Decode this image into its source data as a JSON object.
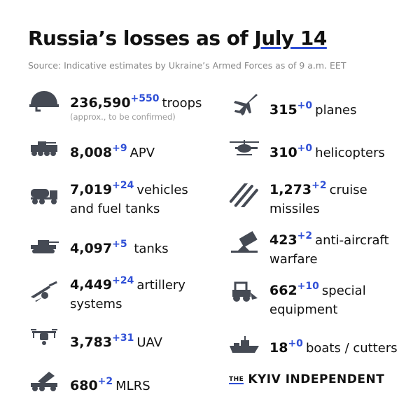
{
  "title": {
    "prefix": "Russia’s losses as of ",
    "date": "July 14"
  },
  "source": "Source: Indicative estimates by Ukraine’s Armed Forces as of 9 a.m. EET",
  "left": [
    {
      "icon": "helmet-icon",
      "value": "236,590",
      "delta": "+550",
      "label": "troops",
      "note": "(approx., to be confirmed)"
    },
    {
      "icon": "apv-icon",
      "value": "8,008",
      "delta": "+9",
      "label": "APV"
    },
    {
      "icon": "fuel-truck-icon",
      "value": "7,019",
      "delta": "+24",
      "label": "vehicles",
      "label2": "and fuel tanks"
    },
    {
      "icon": "tank-icon",
      "value": "4,097",
      "delta": "+5",
      "label": " tanks"
    },
    {
      "icon": "artillery-icon",
      "value": "4,449",
      "delta": "+24",
      "label": "artillery",
      "label2": "systems"
    },
    {
      "icon": "drone-icon",
      "value": "3,783",
      "delta": "+31",
      "label": "UAV"
    },
    {
      "icon": "mlrs-icon",
      "value": "680",
      "delta": "+2",
      "label": "MLRS"
    }
  ],
  "right": [
    {
      "icon": "plane-icon",
      "value": "315",
      "delta": "+0",
      "label": "planes"
    },
    {
      "icon": "helicopter-icon",
      "value": "310",
      "delta": "+0",
      "label": "helicopters"
    },
    {
      "icon": "missile-icon",
      "value": "1,273",
      "delta": "+2",
      "label": "cruise",
      "label2": "missiles"
    },
    {
      "icon": "anti-aircraft-icon",
      "value": "423",
      "delta": "+2",
      "label": "anti-aircraft",
      "label2": "warfare"
    },
    {
      "icon": "loader-icon",
      "value": "662",
      "delta": "+10",
      "label": "special",
      "label2": "equipment"
    },
    {
      "icon": "boat-icon",
      "value": "18",
      "delta": "+0",
      "label": "boats / cutters"
    }
  ],
  "logo": {
    "the": "THE",
    "name": "KYIV INDEPENDENT"
  },
  "colors": {
    "accent": "#2f4fd6",
    "icon": "#454a54",
    "text": "#111111"
  }
}
